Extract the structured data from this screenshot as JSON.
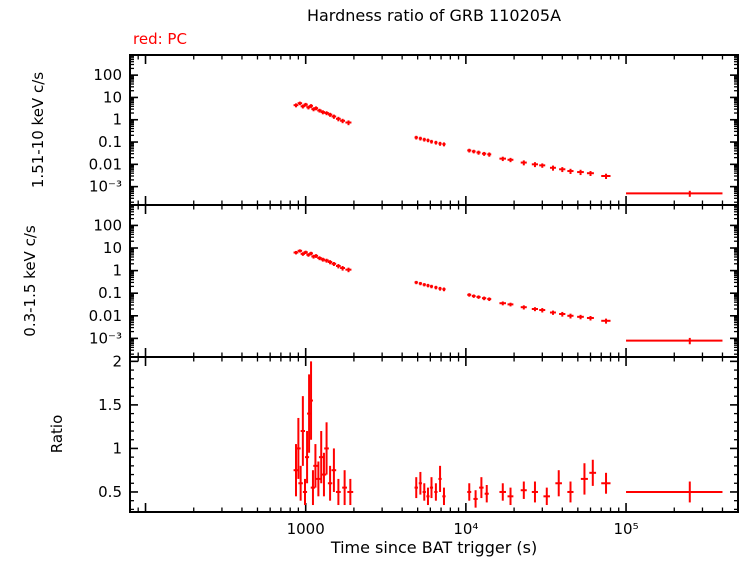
{
  "chart_data": {
    "type": "scatter",
    "title": "Hardness ratio of GRB 110205A",
    "legend": "red: PC",
    "xlabel": "Time since BAT trigger (s)",
    "xscale": "log",
    "xlim": [
      80,
      500000
    ],
    "xticks": [
      {
        "v": 1000,
        "label": "1000"
      },
      {
        "v": 10000,
        "label": "10⁴"
      },
      {
        "v": 100000,
        "label": "10⁵"
      }
    ],
    "color": "#ff0000",
    "grid": false,
    "legend_position": "top-left",
    "panels": [
      {
        "name": "hard-band",
        "ylabel": "1.51-10 keV c/s",
        "yscale": "log",
        "ylim": [
          0.00015,
          800
        ],
        "yticks": [
          {
            "v": 100,
            "label": "100"
          },
          {
            "v": 10,
            "label": "10"
          },
          {
            "v": 1,
            "label": "1"
          },
          {
            "v": 0.1,
            "label": "0.1"
          },
          {
            "v": 0.01,
            "label": "0.01"
          },
          {
            "v": 0.001,
            "label": "10⁻³"
          }
        ],
        "points": [
          [
            870,
            30,
            4.5,
            0.9
          ],
          [
            920,
            30,
            5.5,
            1.0
          ],
          [
            960,
            30,
            4.0,
            0.8
          ],
          [
            1000,
            30,
            4.8,
            0.9
          ],
          [
            1040,
            30,
            3.6,
            0.7
          ],
          [
            1080,
            30,
            4.2,
            0.8
          ],
          [
            1120,
            35,
            3.0,
            0.6
          ],
          [
            1160,
            35,
            3.3,
            0.65
          ],
          [
            1220,
            40,
            2.6,
            0.5
          ],
          [
            1280,
            40,
            2.2,
            0.45
          ],
          [
            1350,
            45,
            2.0,
            0.4
          ],
          [
            1420,
            45,
            1.7,
            0.35
          ],
          [
            1500,
            50,
            1.4,
            0.3
          ],
          [
            1600,
            55,
            1.1,
            0.25
          ],
          [
            1700,
            60,
            0.9,
            0.2
          ],
          [
            1850,
            80,
            0.75,
            0.18
          ],
          [
            4900,
            120,
            0.16,
            0.03
          ],
          [
            5200,
            120,
            0.145,
            0.028
          ],
          [
            5500,
            130,
            0.13,
            0.025
          ],
          [
            5800,
            130,
            0.12,
            0.022
          ],
          [
            6100,
            140,
            0.105,
            0.02
          ],
          [
            6500,
            150,
            0.095,
            0.018
          ],
          [
            6900,
            160,
            0.085,
            0.017
          ],
          [
            7300,
            170,
            0.08,
            0.016
          ],
          [
            10500,
            300,
            0.042,
            0.008
          ],
          [
            11200,
            300,
            0.038,
            0.007
          ],
          [
            12000,
            350,
            0.034,
            0.007
          ],
          [
            13000,
            400,
            0.03,
            0.006
          ],
          [
            14000,
            400,
            0.028,
            0.006
          ],
          [
            17000,
            800,
            0.018,
            0.004
          ],
          [
            19000,
            800,
            0.016,
            0.0035
          ],
          [
            23000,
            1000,
            0.012,
            0.003
          ],
          [
            27000,
            1200,
            0.01,
            0.0025
          ],
          [
            30000,
            1300,
            0.009,
            0.002
          ],
          [
            35000,
            1500,
            0.007,
            0.0018
          ],
          [
            40000,
            1800,
            0.006,
            0.0015
          ],
          [
            45000,
            2000,
            0.005,
            0.0013
          ],
          [
            52000,
            2500,
            0.0045,
            0.0012
          ],
          [
            60000,
            3000,
            0.004,
            0.001
          ],
          [
            75000,
            5000,
            0.003,
            0.0008
          ],
          [
            250000,
            150000,
            0.0005,
            0.00015
          ]
        ]
      },
      {
        "name": "soft-band",
        "ylabel": "0.3-1.5 keV c/s",
        "yscale": "log",
        "ylim": [
          0.00015,
          800
        ],
        "yticks": [
          {
            "v": 100,
            "label": "100"
          },
          {
            "v": 10,
            "label": "10"
          },
          {
            "v": 1,
            "label": "1"
          },
          {
            "v": 0.1,
            "label": "0.1"
          },
          {
            "v": 0.01,
            "label": "0.01"
          },
          {
            "v": 0.001,
            "label": "10⁻³"
          }
        ],
        "points": [
          [
            870,
            30,
            6.3,
            1.1
          ],
          [
            920,
            30,
            7.5,
            1.2
          ],
          [
            960,
            30,
            5.5,
            1.0
          ],
          [
            1000,
            30,
            6.5,
            1.1
          ],
          [
            1040,
            30,
            5.0,
            0.9
          ],
          [
            1080,
            30,
            5.8,
            1.0
          ],
          [
            1120,
            35,
            4.2,
            0.8
          ],
          [
            1160,
            35,
            4.5,
            0.85
          ],
          [
            1220,
            40,
            3.6,
            0.7
          ],
          [
            1280,
            40,
            3.1,
            0.6
          ],
          [
            1350,
            45,
            2.8,
            0.55
          ],
          [
            1420,
            45,
            2.4,
            0.5
          ],
          [
            1500,
            50,
            2.0,
            0.4
          ],
          [
            1600,
            55,
            1.6,
            0.35
          ],
          [
            1700,
            60,
            1.3,
            0.3
          ],
          [
            1850,
            80,
            1.1,
            0.25
          ],
          [
            4900,
            120,
            0.3,
            0.05
          ],
          [
            5200,
            120,
            0.27,
            0.045
          ],
          [
            5500,
            130,
            0.24,
            0.04
          ],
          [
            5800,
            130,
            0.22,
            0.038
          ],
          [
            6100,
            140,
            0.2,
            0.035
          ],
          [
            6500,
            150,
            0.18,
            0.032
          ],
          [
            6900,
            160,
            0.16,
            0.03
          ],
          [
            7300,
            170,
            0.15,
            0.028
          ],
          [
            10500,
            300,
            0.085,
            0.015
          ],
          [
            11200,
            300,
            0.075,
            0.013
          ],
          [
            12000,
            350,
            0.068,
            0.012
          ],
          [
            13000,
            400,
            0.06,
            0.011
          ],
          [
            14000,
            400,
            0.055,
            0.01
          ],
          [
            17000,
            800,
            0.036,
            0.007
          ],
          [
            19000,
            800,
            0.032,
            0.006
          ],
          [
            23000,
            1000,
            0.024,
            0.005
          ],
          [
            27000,
            1200,
            0.02,
            0.004
          ],
          [
            30000,
            1300,
            0.018,
            0.004
          ],
          [
            35000,
            1500,
            0.014,
            0.003
          ],
          [
            40000,
            1800,
            0.012,
            0.0028
          ],
          [
            45000,
            2000,
            0.01,
            0.0024
          ],
          [
            52000,
            2500,
            0.009,
            0.002
          ],
          [
            60000,
            3000,
            0.008,
            0.0018
          ],
          [
            75000,
            5000,
            0.006,
            0.0015
          ],
          [
            250000,
            150000,
            0.0008,
            0.00025
          ]
        ]
      },
      {
        "name": "ratio",
        "ylabel": "Ratio",
        "yscale": "linear",
        "ylim": [
          0.27,
          2.05
        ],
        "yticks": [
          {
            "v": 2,
            "label": "2"
          },
          {
            "v": 1.5,
            "label": "1.5"
          },
          {
            "v": 1,
            "label": "1"
          },
          {
            "v": 0.5,
            "label": "0.5"
          }
        ],
        "points": [
          [
            870,
            30,
            0.75,
            0.3
          ],
          [
            900,
            30,
            1.0,
            0.35
          ],
          [
            930,
            30,
            0.6,
            0.2
          ],
          [
            960,
            30,
            1.2,
            0.4
          ],
          [
            990,
            30,
            0.5,
            0.15
          ],
          [
            1020,
            30,
            0.9,
            0.3
          ],
          [
            1050,
            30,
            1.4,
            0.45
          ],
          [
            1080,
            30,
            1.55,
            0.45
          ],
          [
            1110,
            35,
            0.55,
            0.2
          ],
          [
            1150,
            35,
            0.8,
            0.25
          ],
          [
            1200,
            40,
            0.65,
            0.2
          ],
          [
            1250,
            40,
            0.9,
            0.3
          ],
          [
            1300,
            45,
            0.7,
            0.25
          ],
          [
            1350,
            45,
            1.0,
            0.3
          ],
          [
            1420,
            45,
            0.6,
            0.2
          ],
          [
            1500,
            50,
            0.75,
            0.25
          ],
          [
            1600,
            55,
            0.5,
            0.15
          ],
          [
            1750,
            60,
            0.55,
            0.2
          ],
          [
            1900,
            80,
            0.5,
            0.15
          ],
          [
            4900,
            120,
            0.55,
            0.12
          ],
          [
            5200,
            120,
            0.6,
            0.13
          ],
          [
            5500,
            130,
            0.5,
            0.1
          ],
          [
            5800,
            130,
            0.45,
            0.1
          ],
          [
            6100,
            140,
            0.55,
            0.12
          ],
          [
            6500,
            150,
            0.5,
            0.1
          ],
          [
            6900,
            160,
            0.65,
            0.15
          ],
          [
            7300,
            170,
            0.45,
            0.1
          ],
          [
            10500,
            300,
            0.5,
            0.1
          ],
          [
            11500,
            350,
            0.42,
            0.1
          ],
          [
            12500,
            400,
            0.55,
            0.12
          ],
          [
            13500,
            400,
            0.48,
            0.1
          ],
          [
            17000,
            800,
            0.5,
            0.1
          ],
          [
            19000,
            800,
            0.45,
            0.1
          ],
          [
            23000,
            1000,
            0.52,
            0.1
          ],
          [
            27000,
            1200,
            0.5,
            0.12
          ],
          [
            32000,
            1500,
            0.45,
            0.1
          ],
          [
            38000,
            1800,
            0.6,
            0.15
          ],
          [
            45000,
            2000,
            0.5,
            0.12
          ],
          [
            55000,
            2800,
            0.65,
            0.18
          ],
          [
            62000,
            3000,
            0.72,
            0.15
          ],
          [
            75000,
            5000,
            0.6,
            0.12
          ],
          [
            250000,
            150000,
            0.5,
            0.12
          ]
        ]
      }
    ]
  }
}
